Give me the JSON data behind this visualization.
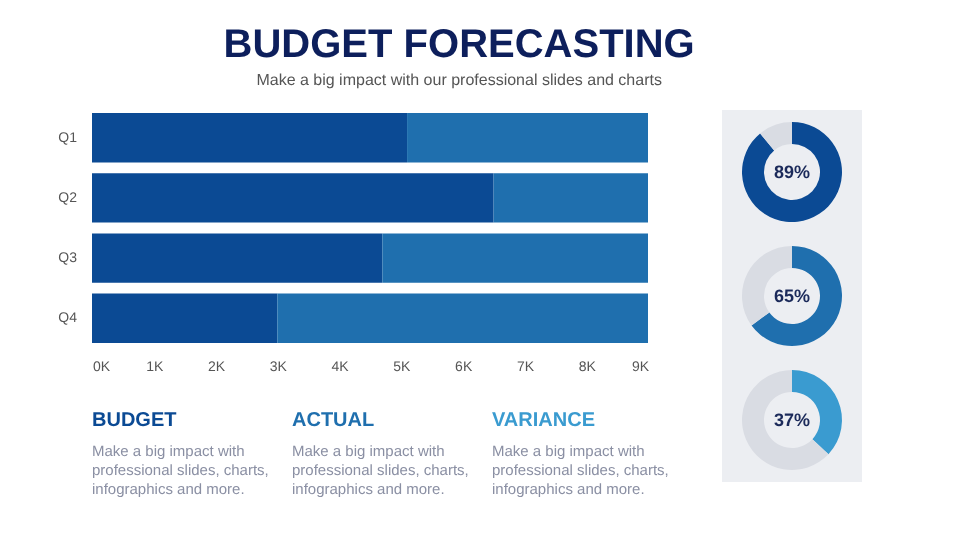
{
  "chart_data": [
    {
      "type": "bar",
      "orientation": "horizontal",
      "stacked": true,
      "title": "BUDGET FORECASTING",
      "subtitle": "Make a big impact with our professional slides and charts",
      "categories": [
        "Q1",
        "Q2",
        "Q3",
        "Q4"
      ],
      "series": [
        {
          "color": "#0b4a94",
          "values": [
            5.1,
            6.5,
            4.7,
            3.0
          ]
        },
        {
          "color": "#1f6fae",
          "values": [
            3.9,
            2.5,
            4.3,
            6.0
          ]
        }
      ],
      "xlim": [
        0,
        9
      ],
      "xticks": [
        {
          "value": 0,
          "label": "0K"
        },
        {
          "value": 1,
          "label": "1K"
        },
        {
          "value": 2,
          "label": "2K"
        },
        {
          "value": 3,
          "label": "3K"
        },
        {
          "value": 4,
          "label": "4K"
        },
        {
          "value": 5,
          "label": "5K"
        },
        {
          "value": 6,
          "label": "6K"
        },
        {
          "value": 7,
          "label": "7K"
        },
        {
          "value": 8,
          "label": "8K"
        },
        {
          "value": 9,
          "label": "9K"
        }
      ],
      "annotations": [
        "BUDGET",
        "Make a big impact with professional slides, charts, infographics and more.",
        "ACTUAL",
        "Make a big impact with professional slides, charts, infographics and more.",
        "VARIANCE",
        "Make a big impact with professional slides, charts, infographics and more."
      ]
    },
    {
      "type": "donut",
      "categories": [
        null,
        null
      ],
      "values": [
        89,
        11
      ],
      "colors": [
        "#0b4a94",
        "#d9dce3"
      ],
      "value_labels": [
        "89%",
        null
      ]
    },
    {
      "type": "donut",
      "categories": [
        null,
        null
      ],
      "values": [
        65,
        35
      ],
      "colors": [
        "#1f6fae",
        "#d9dce3"
      ],
      "value_labels": [
        "65%",
        null
      ]
    },
    {
      "type": "donut",
      "categories": [
        null,
        null
      ],
      "values": [
        37,
        63
      ],
      "colors": [
        "#3a9bd0",
        "#d9dce3"
      ],
      "value_labels": [
        "37%",
        null
      ]
    }
  ]
}
